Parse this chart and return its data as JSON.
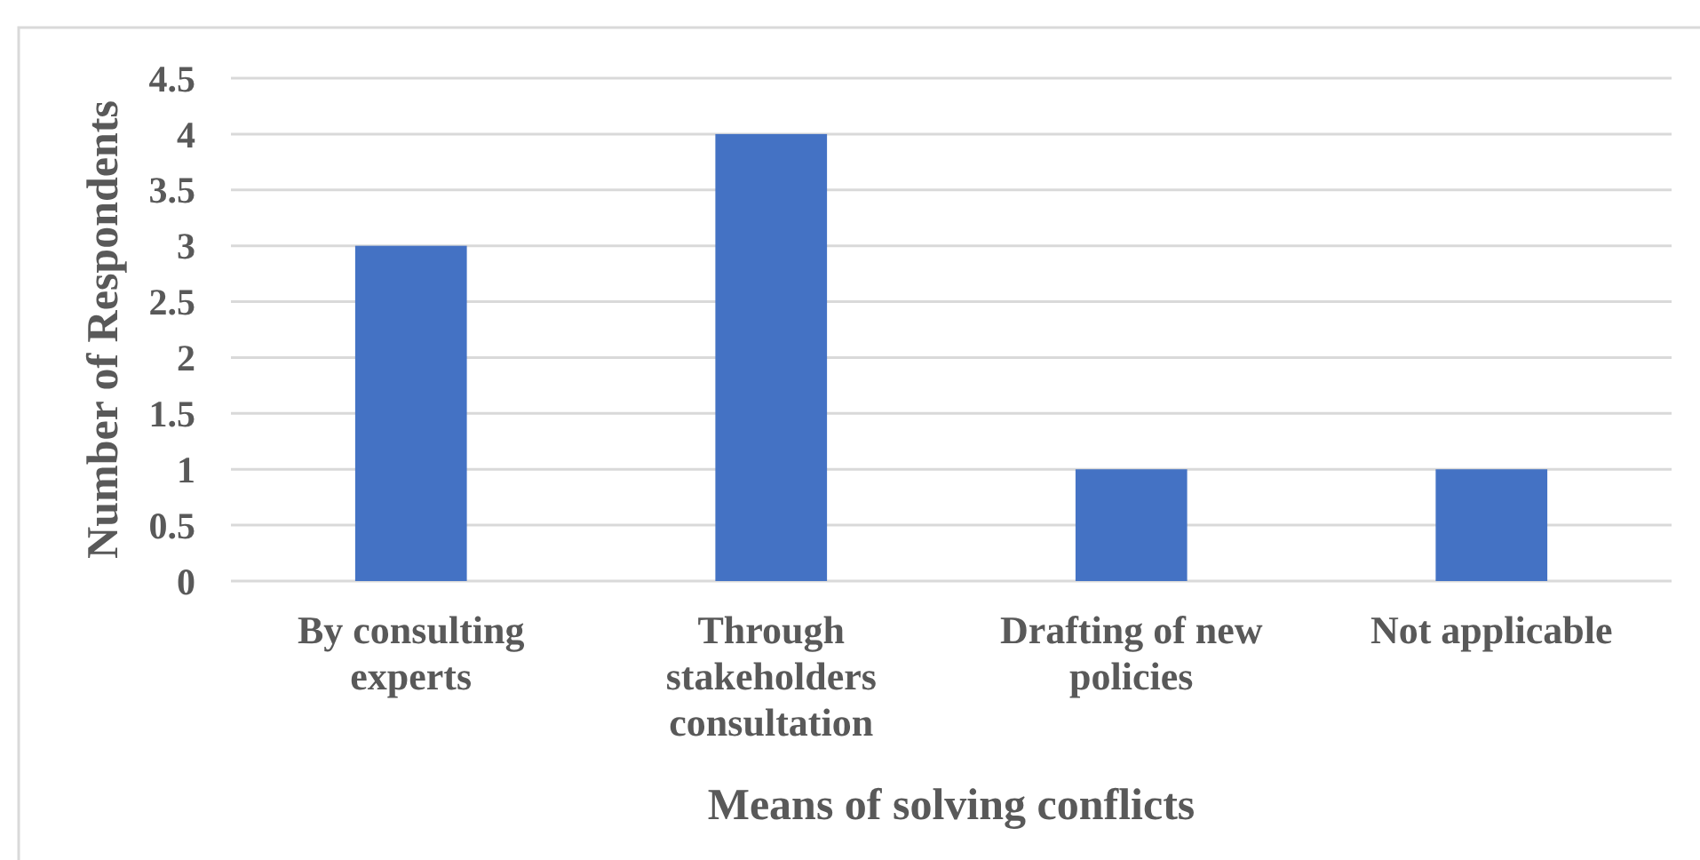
{
  "chart_data": {
    "type": "bar",
    "xlabel": "Means of solving conflicts",
    "ylabel": "Number of Respondents",
    "categories": [
      "By consulting experts",
      "Through stakeholders consultation",
      "Drafting of new policies",
      "Not applicable"
    ],
    "values": [
      3,
      4,
      1,
      1
    ],
    "color": "#4472c4",
    "ylim": [
      0,
      4.5
    ],
    "yticks": [
      0,
      0.5,
      1,
      1.5,
      2,
      2.5,
      3,
      3.5,
      4,
      4.5
    ],
    "grid": "y"
  }
}
